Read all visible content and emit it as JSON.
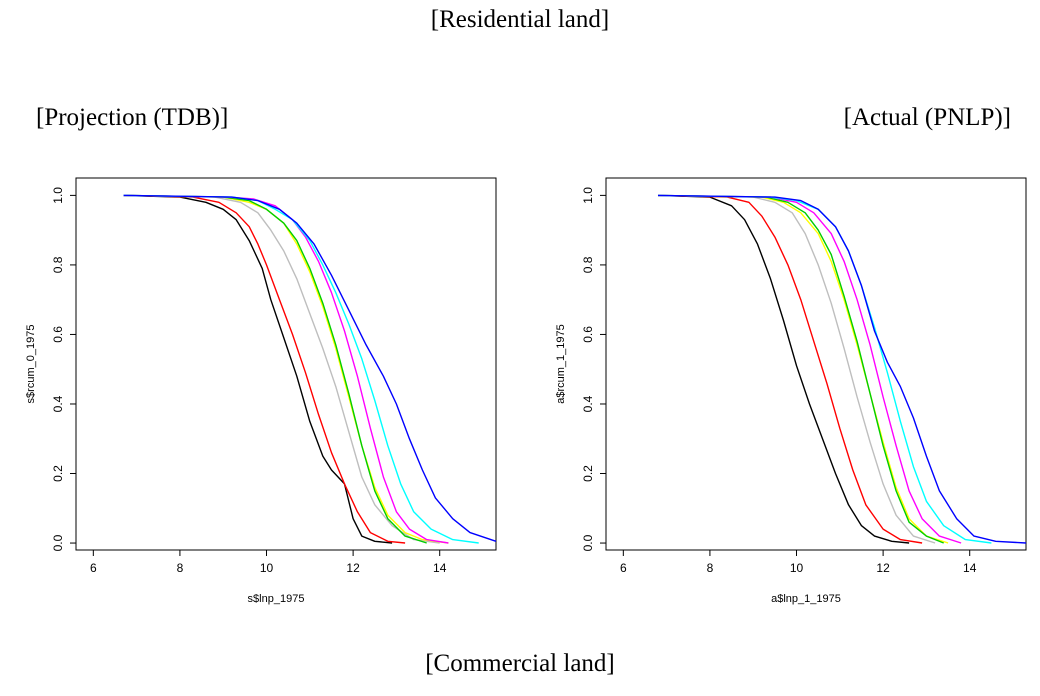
{
  "captions": {
    "top": "[Residential land]",
    "left": "[Projection (TDB)]",
    "right": "[Actual (PNLP)]",
    "bottom": "[Commercial land]"
  },
  "chart_data": [
    {
      "type": "line",
      "panel": "left",
      "xlabel": "s$lnp_1975",
      "ylabel": "s$rcum_0_1975",
      "xlim": [
        5.6,
        15.3
      ],
      "ylim": [
        -0.02,
        1.05
      ],
      "xticks": [
        6,
        8,
        10,
        12,
        14
      ],
      "yticks": [
        0.0,
        0.2,
        0.4,
        0.6,
        0.8,
        1.0
      ],
      "xtick_labels": [
        "6",
        "8",
        "10",
        "12",
        "14"
      ],
      "ytick_labels": [
        "0.0",
        "0.2",
        "0.4",
        "0.6",
        "0.8",
        "1.0"
      ],
      "series": [
        {
          "color": "#000000",
          "x": [
            6.7,
            8.0,
            8.6,
            9.0,
            9.3,
            9.6,
            9.9,
            10.1,
            10.4,
            10.7,
            11.0,
            11.3,
            11.5,
            11.8,
            12.0,
            12.2,
            12.5,
            12.9
          ],
          "y": [
            1.0,
            0.995,
            0.98,
            0.96,
            0.93,
            0.87,
            0.79,
            0.7,
            0.59,
            0.48,
            0.35,
            0.25,
            0.21,
            0.17,
            0.07,
            0.02,
            0.005,
            0.0
          ]
        },
        {
          "color": "#ff0000",
          "x": [
            6.7,
            8.3,
            8.9,
            9.3,
            9.6,
            9.8,
            10.0,
            10.3,
            10.6,
            10.9,
            11.2,
            11.5,
            11.8,
            12.1,
            12.4,
            12.8,
            13.2
          ],
          "y": [
            1.0,
            0.995,
            0.98,
            0.95,
            0.91,
            0.86,
            0.8,
            0.7,
            0.6,
            0.49,
            0.37,
            0.26,
            0.17,
            0.09,
            0.03,
            0.005,
            0.0
          ]
        },
        {
          "color": "#bebebe",
          "x": [
            6.7,
            8.8,
            9.4,
            9.8,
            10.1,
            10.4,
            10.7,
            11.0,
            11.3,
            11.6,
            11.9,
            12.2,
            12.5,
            12.9,
            13.4,
            14.0
          ],
          "y": [
            1.0,
            0.995,
            0.98,
            0.95,
            0.9,
            0.84,
            0.76,
            0.66,
            0.56,
            0.45,
            0.32,
            0.19,
            0.11,
            0.05,
            0.01,
            0.0
          ]
        },
        {
          "color": "#ffff00",
          "x": [
            6.7,
            9.0,
            9.6,
            10.0,
            10.4,
            10.7,
            11.0,
            11.3,
            11.6,
            11.9,
            12.2,
            12.5,
            12.8,
            13.2,
            13.6,
            14.2
          ],
          "y": [
            1.0,
            0.995,
            0.98,
            0.96,
            0.92,
            0.86,
            0.78,
            0.68,
            0.56,
            0.42,
            0.28,
            0.16,
            0.08,
            0.03,
            0.01,
            0.0
          ]
        },
        {
          "color": "#00cd00",
          "x": [
            6.7,
            9.0,
            9.6,
            10.0,
            10.4,
            10.7,
            11.0,
            11.3,
            11.6,
            11.9,
            12.2,
            12.5,
            12.8,
            13.2,
            13.7
          ],
          "y": [
            1.0,
            0.995,
            0.985,
            0.96,
            0.92,
            0.87,
            0.79,
            0.69,
            0.57,
            0.43,
            0.28,
            0.15,
            0.07,
            0.02,
            0.0
          ]
        },
        {
          "color": "#ff00ff",
          "x": [
            6.7,
            9.1,
            9.7,
            10.2,
            10.6,
            10.9,
            11.2,
            11.5,
            11.8,
            12.1,
            12.4,
            12.7,
            13.0,
            13.3,
            13.7,
            14.2
          ],
          "y": [
            1.0,
            0.995,
            0.99,
            0.97,
            0.93,
            0.88,
            0.81,
            0.72,
            0.61,
            0.48,
            0.33,
            0.19,
            0.09,
            0.04,
            0.01,
            0.0
          ]
        },
        {
          "color": "#00ffff",
          "x": [
            6.7,
            9.2,
            9.8,
            10.2,
            10.6,
            11.0,
            11.3,
            11.6,
            11.9,
            12.2,
            12.5,
            12.8,
            13.1,
            13.4,
            13.8,
            14.3,
            14.9
          ],
          "y": [
            1.0,
            0.995,
            0.985,
            0.96,
            0.93,
            0.87,
            0.8,
            0.72,
            0.63,
            0.53,
            0.41,
            0.28,
            0.17,
            0.09,
            0.04,
            0.01,
            0.0
          ]
        },
        {
          "color": "#0000ff",
          "x": [
            6.7,
            9.2,
            9.8,
            10.3,
            10.7,
            11.1,
            11.5,
            11.9,
            12.3,
            12.7,
            13.0,
            13.3,
            13.6,
            13.9,
            14.3,
            14.7,
            15.3
          ],
          "y": [
            1.0,
            0.995,
            0.985,
            0.96,
            0.92,
            0.86,
            0.77,
            0.67,
            0.57,
            0.48,
            0.4,
            0.3,
            0.21,
            0.13,
            0.07,
            0.03,
            0.005
          ]
        }
      ]
    },
    {
      "type": "line",
      "panel": "right",
      "xlabel": "a$lnp_1_1975",
      "ylabel": "a$rcum_1_1975",
      "xlim": [
        5.6,
        15.3
      ],
      "ylim": [
        -0.02,
        1.05
      ],
      "xticks": [
        6,
        8,
        10,
        12,
        14
      ],
      "yticks": [
        0.0,
        0.2,
        0.4,
        0.6,
        0.8,
        1.0
      ],
      "xtick_labels": [
        "6",
        "8",
        "10",
        "12",
        "14"
      ],
      "ytick_labels": [
        "0.0",
        "0.2",
        "0.4",
        "0.6",
        "0.8",
        "1.0"
      ],
      "series": [
        {
          "color": "#000000",
          "x": [
            6.8,
            8.0,
            8.5,
            8.8,
            9.1,
            9.4,
            9.7,
            10.0,
            10.3,
            10.6,
            10.9,
            11.2,
            11.5,
            11.8,
            12.2,
            12.6
          ],
          "y": [
            1.0,
            0.995,
            0.97,
            0.93,
            0.86,
            0.76,
            0.64,
            0.51,
            0.4,
            0.3,
            0.2,
            0.11,
            0.05,
            0.02,
            0.005,
            0.0
          ]
        },
        {
          "color": "#ff0000",
          "x": [
            6.8,
            8.4,
            8.9,
            9.2,
            9.5,
            9.8,
            10.1,
            10.4,
            10.7,
            11.0,
            11.3,
            11.6,
            12.0,
            12.4,
            12.9
          ],
          "y": [
            1.0,
            0.995,
            0.98,
            0.94,
            0.88,
            0.8,
            0.7,
            0.58,
            0.46,
            0.33,
            0.21,
            0.11,
            0.04,
            0.01,
            0.0
          ]
        },
        {
          "color": "#bebebe",
          "x": [
            6.8,
            9.0,
            9.5,
            9.9,
            10.2,
            10.5,
            10.8,
            11.1,
            11.4,
            11.7,
            12.0,
            12.3,
            12.7,
            13.2
          ],
          "y": [
            1.0,
            0.995,
            0.98,
            0.95,
            0.89,
            0.8,
            0.69,
            0.56,
            0.42,
            0.29,
            0.17,
            0.08,
            0.02,
            0.0
          ]
        },
        {
          "color": "#ffff00",
          "x": [
            6.8,
            9.2,
            9.7,
            10.1,
            10.5,
            10.8,
            11.1,
            11.4,
            11.7,
            12.0,
            12.3,
            12.6,
            13.0,
            13.5
          ],
          "y": [
            1.0,
            0.995,
            0.98,
            0.95,
            0.89,
            0.81,
            0.7,
            0.57,
            0.43,
            0.29,
            0.16,
            0.07,
            0.02,
            0.0
          ]
        },
        {
          "color": "#00cd00",
          "x": [
            6.8,
            9.3,
            9.8,
            10.2,
            10.5,
            10.8,
            11.1,
            11.4,
            11.7,
            12.0,
            12.3,
            12.6,
            13.0,
            13.4
          ],
          "y": [
            1.0,
            0.995,
            0.98,
            0.95,
            0.9,
            0.83,
            0.71,
            0.58,
            0.43,
            0.28,
            0.15,
            0.06,
            0.02,
            0.0
          ]
        },
        {
          "color": "#ff00ff",
          "x": [
            6.8,
            9.4,
            10.0,
            10.4,
            10.8,
            11.1,
            11.4,
            11.7,
            12.0,
            12.3,
            12.6,
            12.9,
            13.3,
            13.8
          ],
          "y": [
            1.0,
            0.995,
            0.98,
            0.95,
            0.89,
            0.81,
            0.7,
            0.57,
            0.42,
            0.28,
            0.15,
            0.07,
            0.02,
            0.0
          ]
        },
        {
          "color": "#00ffff",
          "x": [
            6.8,
            9.4,
            10.0,
            10.5,
            10.9,
            11.2,
            11.5,
            11.8,
            12.1,
            12.4,
            12.7,
            13.0,
            13.4,
            13.9,
            14.5
          ],
          "y": [
            1.0,
            0.995,
            0.985,
            0.96,
            0.91,
            0.84,
            0.74,
            0.62,
            0.49,
            0.35,
            0.22,
            0.12,
            0.05,
            0.01,
            0.0
          ]
        },
        {
          "color": "#0000ff",
          "x": [
            6.8,
            9.5,
            10.1,
            10.5,
            10.9,
            11.2,
            11.5,
            11.8,
            12.1,
            12.4,
            12.7,
            13.0,
            13.3,
            13.7,
            14.1,
            14.6,
            15.3
          ],
          "y": [
            1.0,
            0.995,
            0.985,
            0.96,
            0.91,
            0.84,
            0.74,
            0.61,
            0.52,
            0.45,
            0.36,
            0.25,
            0.15,
            0.07,
            0.02,
            0.005,
            0.0
          ]
        }
      ]
    }
  ]
}
